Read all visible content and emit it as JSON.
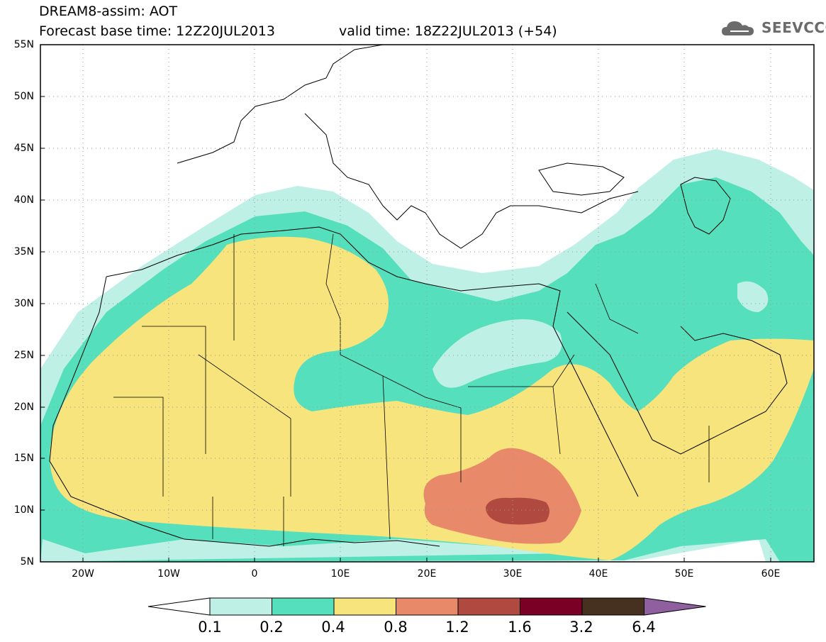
{
  "title": {
    "line1": "DREAM8-assim: AOT",
    "line2_base": "Forecast base time: 12Z20JUL2013",
    "line2_valid": "valid time: 18Z22JUL2013 (+54)"
  },
  "logo": {
    "text": "SEEVCCC",
    "icon": "cloud-logo-icon"
  },
  "map": {
    "lon_range": [
      -25,
      65
    ],
    "lat_range": [
      5,
      55
    ],
    "lat_labels": [
      "55N",
      "50N",
      "45N",
      "40N",
      "35N",
      "30N",
      "25N",
      "20N",
      "15N",
      "10N",
      "5N"
    ],
    "lon_labels": [
      "20W",
      "10W",
      "0",
      "10E",
      "20E",
      "30E",
      "40E",
      "50E",
      "60E"
    ],
    "colors": {
      "c01_02": "#bff0e6",
      "c02_04": "#55dfbc",
      "c04_08": "#f7e47c",
      "c08_12": "#e8896a",
      "c12_16": "#b04a40",
      "c16_32": "#7a0025",
      "c32_64": "#46301f",
      "c64plus": "#8f5fa0"
    }
  },
  "colorbar": {
    "labels": [
      "0.1",
      "0.2",
      "0.4",
      "0.8",
      "1.2",
      "1.6",
      "3.2",
      "6.4"
    ],
    "colors": [
      "#ffffff",
      "#bff0e6",
      "#55dfbc",
      "#f7e47c",
      "#e8896a",
      "#b04a40",
      "#7a0025",
      "#46301f",
      "#8f5fa0"
    ]
  }
}
